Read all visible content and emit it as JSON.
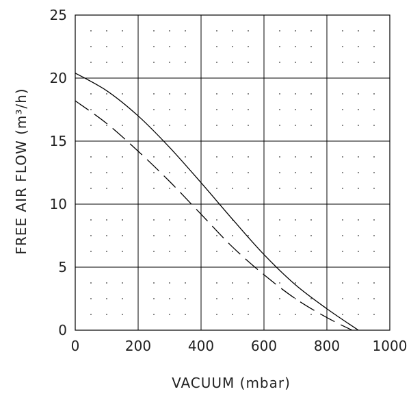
{
  "chart_data": {
    "type": "line",
    "xlabel": "VACUUM (mbar)",
    "ylabel": "FREE AIR FLOW (m³/h)",
    "xlim": [
      0,
      1000
    ],
    "ylim": [
      0,
      25
    ],
    "xticks": [
      "0",
      "200",
      "400",
      "600",
      "800",
      "1000"
    ],
    "yticks": [
      "0",
      "5",
      "10",
      "15",
      "20",
      "25"
    ],
    "grid": true,
    "minor_dots": true,
    "series": [
      {
        "style": "solid",
        "color": "#000000",
        "x": [
          0,
          100,
          200,
          300,
          400,
          500,
          600,
          700,
          800,
          900
        ],
        "y": [
          20.4,
          19.0,
          17.0,
          14.5,
          11.7,
          8.8,
          6.0,
          3.6,
          1.7,
          0
        ]
      },
      {
        "style": "dashed",
        "color": "#000000",
        "x": [
          0,
          100,
          200,
          300,
          400,
          500,
          600,
          700,
          800,
          880
        ],
        "y": [
          18.2,
          16.4,
          14.2,
          11.8,
          9.2,
          6.6,
          4.4,
          2.5,
          1.0,
          0
        ]
      }
    ]
  }
}
